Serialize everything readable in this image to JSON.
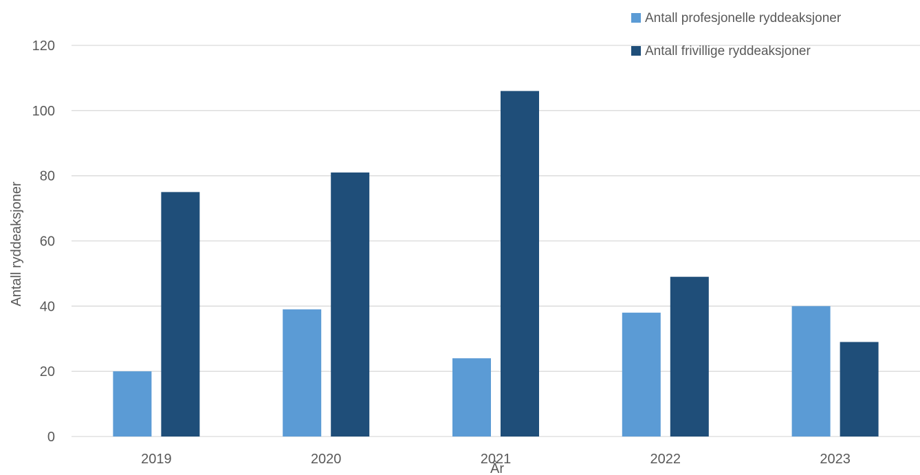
{
  "chart_data": {
    "type": "bar",
    "categories": [
      "2019",
      "2020",
      "2021",
      "2022",
      "2023"
    ],
    "series": [
      {
        "name": "Antall profesjonelle ryddeaksjoner",
        "color": "#5b9bd5",
        "values": [
          20,
          39,
          24,
          38,
          40
        ]
      },
      {
        "name": "Antall frivillige ryddeaksjoner",
        "color": "#1f4e79",
        "values": [
          75,
          81,
          106,
          49,
          29
        ]
      }
    ],
    "xlabel": "År",
    "ylabel": "Antall ryddeaksjoner",
    "ylim": [
      0,
      120
    ],
    "yticks": [
      0,
      20,
      40,
      60,
      80,
      100,
      120
    ],
    "grid": true,
    "legend": "top-right"
  }
}
